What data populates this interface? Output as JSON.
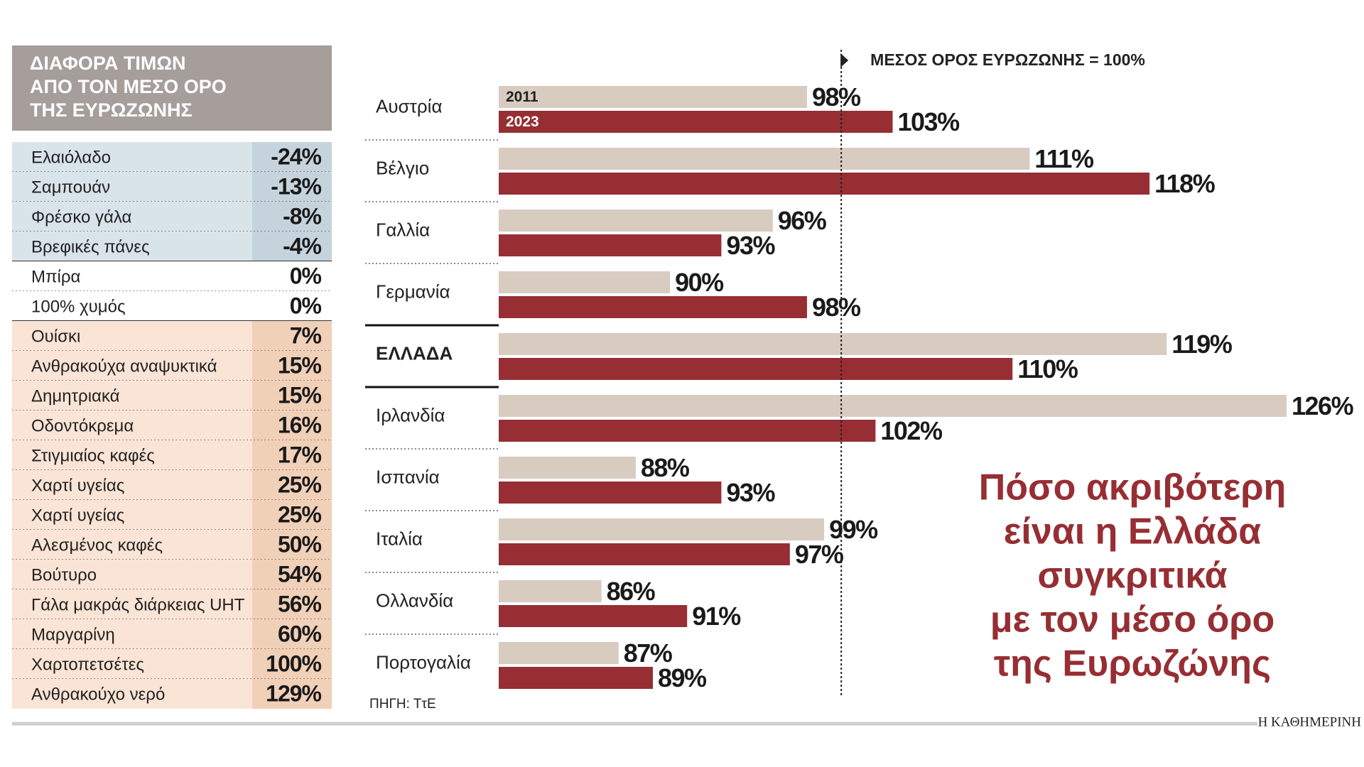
{
  "table": {
    "header": [
      "ΔΙΑΦΟΡΑ ΤΙΜΩΝ",
      "ΑΠΟ ΤΟΝ ΜΕΣΟ ΟΡΟ",
      "ΤΗΣ ΕΥΡΩΖΩΝΗΣ"
    ],
    "groups": [
      {
        "color": "#d9e3ea",
        "value_color": "#c5d3dc",
        "rows": [
          [
            "Ελαιόλαδο",
            "-24%"
          ],
          [
            "Σαμπουάν",
            "-13%"
          ],
          [
            "Φρέσκο γάλα",
            "-8%"
          ],
          [
            "Βρεφικές πάνες",
            "-4%"
          ]
        ]
      },
      {
        "color": "#ffffff",
        "value_color": "#ffffff",
        "rows": [
          [
            "Μπίρα",
            "0%"
          ],
          [
            "100% χυμός",
            "0%"
          ]
        ]
      },
      {
        "color": "#f9e4d5",
        "value_color": "#f1d0b8",
        "rows": [
          [
            "Ουίσκι",
            "7%"
          ],
          [
            "Ανθρακούχα αναψυκτικά",
            "15%"
          ],
          [
            "Δημητριακά",
            "15%"
          ],
          [
            "Οδοντόκρεμα",
            "16%"
          ],
          [
            "Στιγμιαίος καφές",
            "17%"
          ],
          [
            "Χαρτί υγείας",
            "25%"
          ],
          [
            "Χαρτί υγείας",
            "25%"
          ],
          [
            "Αλεσμένος καφές",
            "50%"
          ],
          [
            "Βούτυρο",
            "54%"
          ],
          [
            "Γάλα μακράς διάρκειας UHT",
            "56%"
          ],
          [
            "Μαργαρίνη",
            "60%"
          ],
          [
            "Χαρτοπετσέτες",
            "100%"
          ],
          [
            "Ανθρακούχο νερό",
            "129%"
          ]
        ]
      }
    ]
  },
  "chart_data": {
    "type": "hbar",
    "title": [
      "Πόσο ακριβότερη",
      "είναι η Ελλάδα",
      "συγκριτικά",
      "με τον μέσο όρο",
      "της Ευρωζώνης"
    ],
    "categories": [
      "Αυστρία",
      "Βέλγιο",
      "Γαλλία",
      "Γερμανία",
      "ΕΛΛΑΔΑ",
      "Ιρλανδία",
      "Ισπανία",
      "Ιταλία",
      "Ολλανδία",
      "Πορτογαλία"
    ],
    "highlight": "ΕΛΛΑΔΑ",
    "series": [
      {
        "name": "2011",
        "color": "#d8cbc0",
        "values": [
          98,
          111,
          96,
          90,
          119,
          126,
          88,
          99,
          86,
          87
        ],
        "value_labels": [
          "98%",
          "111%",
          "96%",
          "90%",
          "119%",
          "126%",
          "88%",
          "99%",
          "86%",
          "87%"
        ]
      },
      {
        "name": "2023",
        "color": "#962e33",
        "values": [
          103,
          118,
          93,
          98,
          110,
          102,
          93,
          97,
          91,
          89
        ],
        "value_labels": [
          "103%",
          "118%",
          "93%",
          "98%",
          "110%",
          "102%",
          "93%",
          "97%",
          "91%",
          "89%"
        ]
      }
    ],
    "xlim": [
      80,
      126
    ],
    "reference_line": {
      "value": 100,
      "label": "ΜΕΣΟΣ ΟΡΟΣ ΕΥΡΩΖΩΝΗΣ = 100%"
    },
    "source": "ΠΗΓΗ: ΤτΕ",
    "credit": "Η ΚΑΘΗΜΕΡΙΝΗ"
  }
}
